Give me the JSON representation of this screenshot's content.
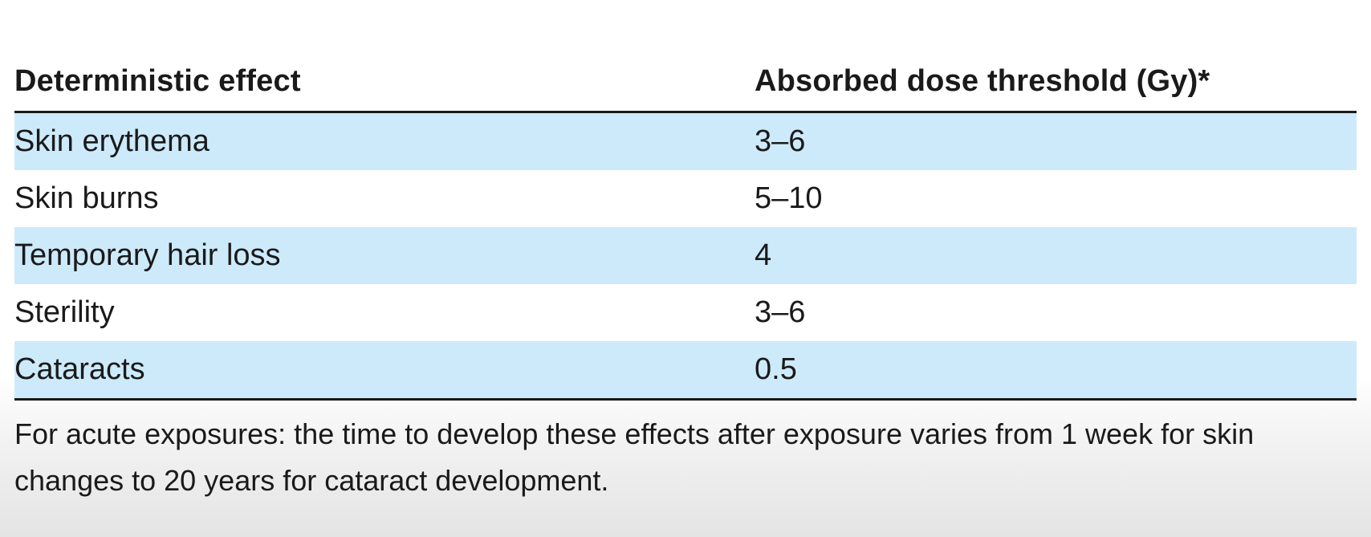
{
  "table": {
    "headers": [
      "Deterministic effect",
      "Absorbed dose threshold (Gy)*"
    ],
    "rows": [
      [
        "Skin erythema",
        "3–6"
      ],
      [
        "Skin burns",
        "5–10"
      ],
      [
        "Temporary hair loss",
        "4"
      ],
      [
        "Sterility",
        "3–6"
      ],
      [
        "Cataracts",
        "0.5"
      ]
    ],
    "row_shading": [
      true,
      false,
      true,
      false,
      true
    ],
    "shade_color": "#cdeafb"
  },
  "footnote": {
    "line1": "For acute exposures: the time to develop these effects after exposure varies from 1 week for skin",
    "line2": "changes to 20 years for cataract development."
  }
}
